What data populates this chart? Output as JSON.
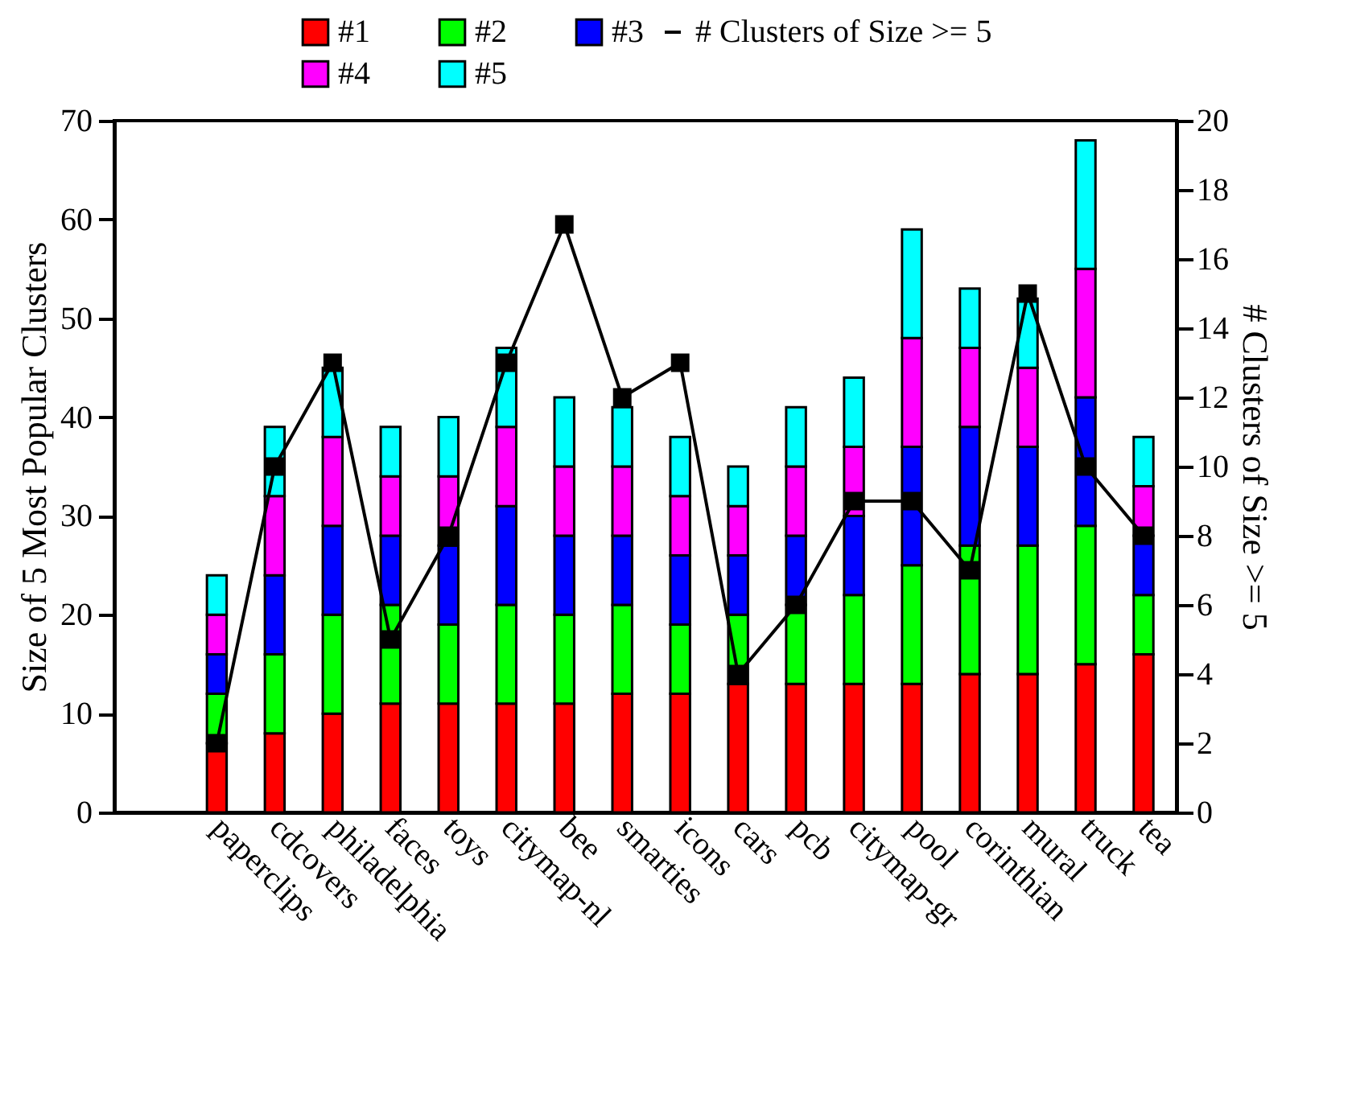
{
  "chart_data": {
    "type": "bar",
    "stacked": true,
    "categories": [
      "paperclips",
      "cdcovers",
      "philadelphia",
      "faces",
      "toys",
      "citymap-nl",
      "bee",
      "smarties",
      "icons",
      "cars",
      "pcb",
      "citymap-gr",
      "pool",
      "corinthian",
      "mural",
      "truck",
      "tea"
    ],
    "series": [
      {
        "name": "#1",
        "color": "#ff0000",
        "values": [
          7,
          8,
          10,
          11,
          11,
          11,
          11,
          12,
          12,
          13,
          13,
          13,
          13,
          14,
          14,
          15,
          16
        ]
      },
      {
        "name": "#2",
        "color": "#00ff00",
        "values": [
          5,
          8,
          10,
          10,
          8,
          10,
          9,
          9,
          7,
          7,
          8,
          9,
          12,
          13,
          13,
          14,
          6
        ]
      },
      {
        "name": "#3",
        "color": "#0000ff",
        "values": [
          4,
          8,
          9,
          7,
          8,
          10,
          8,
          7,
          7,
          6,
          7,
          8,
          12,
          12,
          10,
          13,
          6
        ]
      },
      {
        "name": "#4",
        "color": "#ff00ff",
        "values": [
          4,
          8,
          9,
          6,
          7,
          8,
          7,
          7,
          6,
          5,
          7,
          7,
          11,
          8,
          8,
          13,
          5
        ]
      },
      {
        "name": "#5",
        "color": "#00ffff",
        "values": [
          4,
          7,
          7,
          5,
          6,
          8,
          7,
          6,
          6,
          4,
          6,
          7,
          11,
          6,
          7,
          13,
          5
        ]
      },
      {
        "name": "# Clusters of Size >= 5",
        "type": "line",
        "axis": "y2",
        "color": "#000000",
        "values": [
          2,
          10,
          13,
          5,
          8,
          13,
          17,
          12,
          13,
          4,
          6,
          9,
          9,
          7,
          15,
          10,
          8
        ]
      }
    ],
    "ylabel": "Size of 5 Most Popular Clusters",
    "y2label": "# Clusters of Size >= 5",
    "ylim": [
      0,
      70
    ],
    "yticks": [
      0,
      10,
      20,
      30,
      40,
      50,
      60,
      70
    ],
    "y2lim": [
      0,
      20
    ],
    "y2ticks": [
      0,
      2,
      4,
      6,
      8,
      10,
      12,
      14,
      16,
      18,
      20
    ],
    "legend": "top",
    "marker": "square",
    "grid": false
  }
}
